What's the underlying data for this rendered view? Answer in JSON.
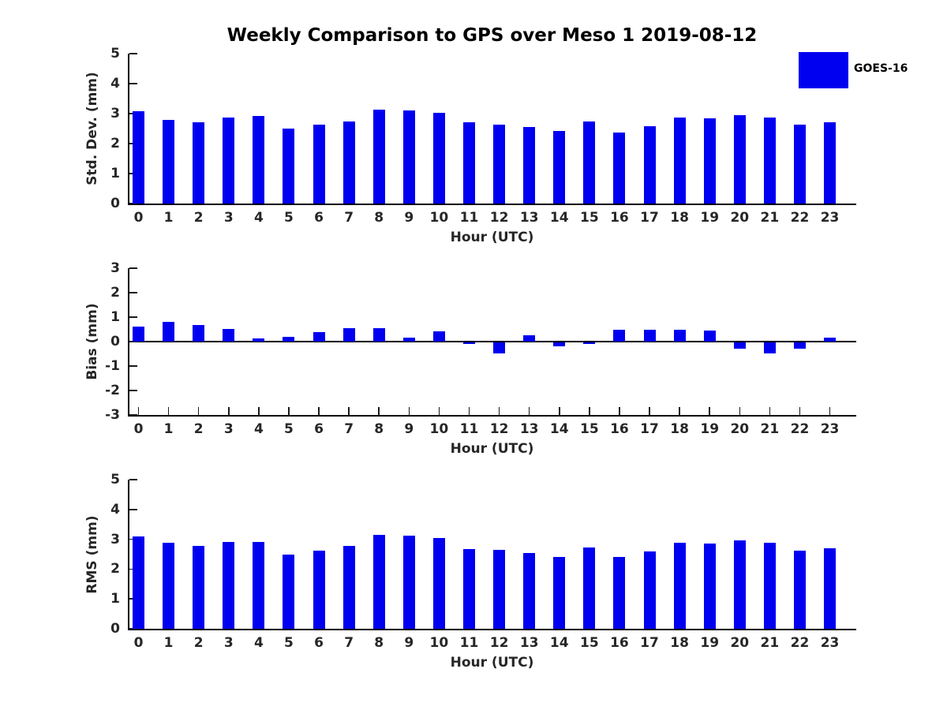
{
  "title": "Weekly Comparison to GPS over Meso 1 2019-08-12",
  "legend": {
    "label": "GOES-16",
    "color": "#0000F0"
  },
  "chart_data": [
    {
      "type": "bar",
      "series_name": "GOES-16",
      "ylabel": "Std. Dev. (mm)",
      "xlabel": "Hour (UTC)",
      "x": [
        0,
        1,
        2,
        3,
        4,
        5,
        6,
        7,
        8,
        9,
        10,
        11,
        12,
        13,
        14,
        15,
        16,
        17,
        18,
        19,
        20,
        21,
        22,
        23
      ],
      "values": [
        3.07,
        2.78,
        2.7,
        2.88,
        2.91,
        2.49,
        2.62,
        2.75,
        3.14,
        3.11,
        3.02,
        2.7,
        2.62,
        2.54,
        2.43,
        2.75,
        2.38,
        2.59,
        2.87,
        2.85,
        2.95,
        2.87,
        2.64,
        2.71
      ],
      "ylim": [
        0,
        5
      ],
      "yticks": [
        5,
        4,
        3,
        2,
        1,
        0
      ],
      "grid": false,
      "legend_position": "upper-right-outside"
    },
    {
      "type": "bar",
      "series_name": "GOES-16",
      "ylabel": "Bias (mm)",
      "xlabel": "Hour (UTC)",
      "x": [
        0,
        1,
        2,
        3,
        4,
        5,
        6,
        7,
        8,
        9,
        10,
        11,
        12,
        13,
        14,
        15,
        16,
        17,
        18,
        19,
        20,
        21,
        22,
        23
      ],
      "values": [
        0.6,
        0.82,
        0.67,
        0.52,
        0.12,
        0.2,
        0.38,
        0.55,
        0.55,
        0.15,
        0.43,
        -0.08,
        -0.45,
        0.27,
        -0.17,
        -0.08,
        0.48,
        0.48,
        0.5,
        0.44,
        -0.27,
        -0.45,
        -0.27,
        0.15
      ],
      "ylim": [
        -3,
        3
      ],
      "yticks": [
        3,
        2,
        1,
        0,
        -1,
        -2,
        -3
      ],
      "grid": false,
      "zero_line": true
    },
    {
      "type": "bar",
      "series_name": "GOES-16",
      "ylabel": "RMS (mm)",
      "xlabel": "Hour (UTC)",
      "x": [
        0,
        1,
        2,
        3,
        4,
        5,
        6,
        7,
        8,
        9,
        10,
        11,
        12,
        13,
        14,
        15,
        16,
        17,
        18,
        19,
        20,
        21,
        22,
        23
      ],
      "values": [
        3.09,
        2.88,
        2.77,
        2.9,
        2.9,
        2.49,
        2.62,
        2.77,
        3.16,
        3.11,
        3.03,
        2.68,
        2.64,
        2.53,
        2.4,
        2.73,
        2.4,
        2.6,
        2.89,
        2.85,
        2.95,
        2.89,
        2.63,
        2.69
      ],
      "ylim": [
        0,
        5
      ],
      "yticks": [
        5,
        4,
        3,
        2,
        1,
        0
      ],
      "grid": false,
      "zero_line": false
    }
  ]
}
